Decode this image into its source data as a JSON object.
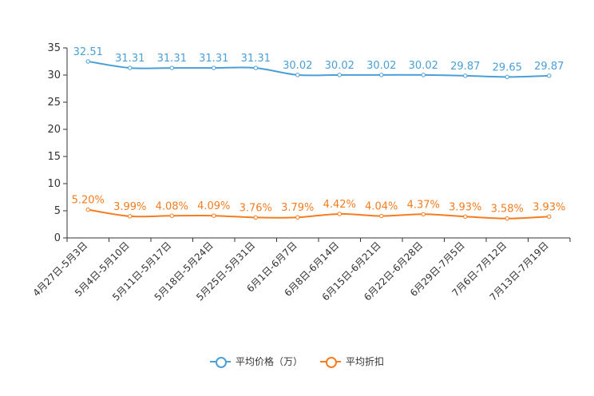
{
  "chart_data": {
    "type": "line",
    "categories": [
      "4月27日-5月3日",
      "5月4日-5月10日",
      "5月11日-5月17日",
      "5月18日-5月24日",
      "5月25日-5月31日",
      "6月1日-6月7日",
      "6月8日-6月14日",
      "6月15日-6月21日",
      "6月22日-6月28日",
      "6月29日-7月5日",
      "7月6日-7月12日",
      "7月13日-7月19日"
    ],
    "series": [
      {
        "name": "平均价格（万）",
        "color": "#4a9fd6",
        "values": [
          32.51,
          31.31,
          31.31,
          31.31,
          31.31,
          30.02,
          30.02,
          30.02,
          30.02,
          29.87,
          29.65,
          29.87
        ],
        "labels": [
          "32.51",
          "31.31",
          "31.31",
          "31.31",
          "31.31",
          "30.02",
          "30.02",
          "30.02",
          "30.02",
          "29.87",
          "29.65",
          "29.87"
        ]
      },
      {
        "name": "平均折扣",
        "color": "#f57c1f",
        "values": [
          5.2,
          3.99,
          4.08,
          4.09,
          3.76,
          3.79,
          4.42,
          4.04,
          4.37,
          3.93,
          3.58,
          3.93
        ],
        "labels": [
          "5.20%",
          "3.99%",
          "4.08%",
          "4.09%",
          "3.76%",
          "3.79%",
          "4.42%",
          "4.04%",
          "4.37%",
          "3.93%",
          "3.58%",
          "3.93%"
        ]
      }
    ],
    "yticks": [
      0,
      5,
      10,
      15,
      20,
      25,
      30,
      35
    ],
    "ylim": [
      0,
      35
    ],
    "legend_position": "bottom-center"
  }
}
